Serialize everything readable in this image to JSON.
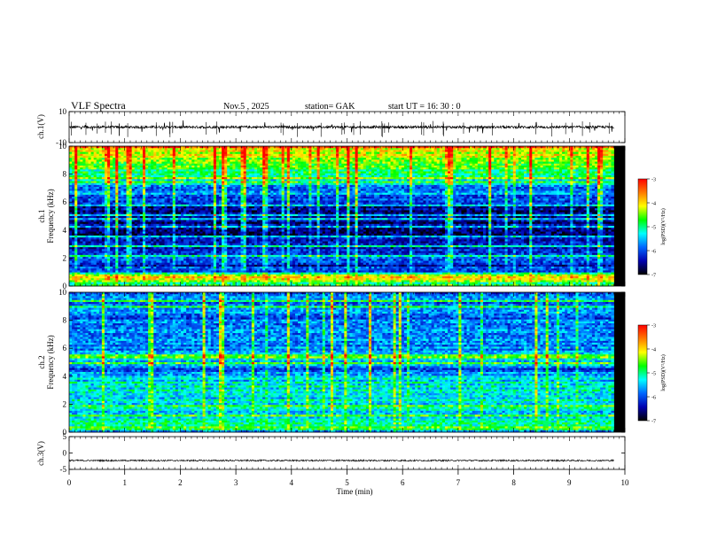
{
  "header": {
    "title": "VLF  Spectra",
    "date": "Nov.5   , 2025",
    "station": "station= GAK",
    "start": "start  UT  =    16: 30 : 0"
  },
  "colorbar": {
    "label": "log(PSD)(V²/Hz)",
    "ticks": [
      "-3",
      "-4",
      "-5",
      "-6",
      "-7"
    ],
    "colors": [
      "#ff0000",
      "#ff7a00",
      "#ffff00",
      "#00ff00",
      "#00ffff",
      "#0066ff",
      "#0000b0",
      "#000000"
    ]
  },
  "chart_data": [
    {
      "type": "line",
      "name": "ch1-waveform",
      "ylabel": "ch.1(V)",
      "ylim": [
        -10,
        10
      ],
      "yticks": [
        "10",
        "-10"
      ],
      "baseline": 0,
      "xlim": [
        0,
        10
      ]
    },
    {
      "type": "heatmap",
      "name": "ch1-spectrogram",
      "ylabel_line1": "ch.1",
      "ylabel_line2": "Frequency  (kHz)",
      "ylim": [
        0,
        10
      ],
      "yticks": [
        "10",
        "8",
        "6",
        "4",
        "2",
        "0"
      ],
      "xlim": [
        0,
        10
      ],
      "data_end_min": 9.8,
      "zlim": [
        -7,
        -3
      ],
      "profile_log_psd": [
        [
          0.0,
          -6.2
        ],
        [
          0.5,
          -3.9
        ],
        [
          0.8,
          -4.5
        ],
        [
          1.0,
          -6.0
        ],
        [
          1.5,
          -6.2
        ],
        [
          2.0,
          -6.0
        ],
        [
          2.4,
          -6.3
        ],
        [
          3.0,
          -6.2
        ],
        [
          3.5,
          -6.5
        ],
        [
          4.5,
          -6.6
        ],
        [
          5.5,
          -6.4
        ],
        [
          6.2,
          -6.0
        ],
        [
          6.6,
          -5.7
        ],
        [
          7.0,
          -5.7
        ],
        [
          7.5,
          -5.3
        ],
        [
          8.0,
          -5.0
        ],
        [
          8.5,
          -4.7
        ],
        [
          9.0,
          -4.4
        ],
        [
          9.5,
          -4.2
        ],
        [
          10.0,
          -4.0
        ]
      ]
    },
    {
      "type": "heatmap",
      "name": "ch2-spectrogram",
      "ylabel_line1": "ch.2",
      "ylabel_line2": "Frequency  (kHz)",
      "ylim": [
        0,
        10
      ],
      "yticks": [
        "10",
        "8",
        "6",
        "4",
        "2",
        "0"
      ],
      "xlim": [
        0,
        10
      ],
      "data_end_min": 9.8,
      "zlim": [
        -7,
        -3
      ],
      "profile_log_psd": [
        [
          0.0,
          -5.8
        ],
        [
          0.3,
          -4.8
        ],
        [
          0.6,
          -5.0
        ],
        [
          1.0,
          -5.4
        ],
        [
          1.5,
          -5.3
        ],
        [
          2.0,
          -5.4
        ],
        [
          2.5,
          -5.3
        ],
        [
          3.0,
          -5.2
        ],
        [
          3.5,
          -5.3
        ],
        [
          4.0,
          -5.6
        ],
        [
          4.5,
          -5.9
        ],
        [
          5.0,
          -5.3
        ],
        [
          5.5,
          -5.5
        ],
        [
          6.0,
          -5.7
        ],
        [
          6.5,
          -5.8
        ],
        [
          7.0,
          -5.7
        ],
        [
          7.5,
          -5.8
        ],
        [
          8.0,
          -5.9
        ],
        [
          8.5,
          -5.8
        ],
        [
          9.0,
          -5.9
        ],
        [
          9.5,
          -5.8
        ],
        [
          10.0,
          -5.9
        ]
      ]
    },
    {
      "type": "line",
      "name": "ch3-waveform",
      "ylabel": "ch.3(V)",
      "ylim": [
        -5,
        5
      ],
      "yticks": [
        "5",
        "0",
        "-5"
      ],
      "baseline": -2.3,
      "xlim": [
        0,
        10
      ],
      "xlabel": "Time  (min)",
      "xticks": [
        "0",
        "1",
        "2",
        "3",
        "4",
        "5",
        "6",
        "7",
        "8",
        "9",
        "10"
      ]
    }
  ]
}
